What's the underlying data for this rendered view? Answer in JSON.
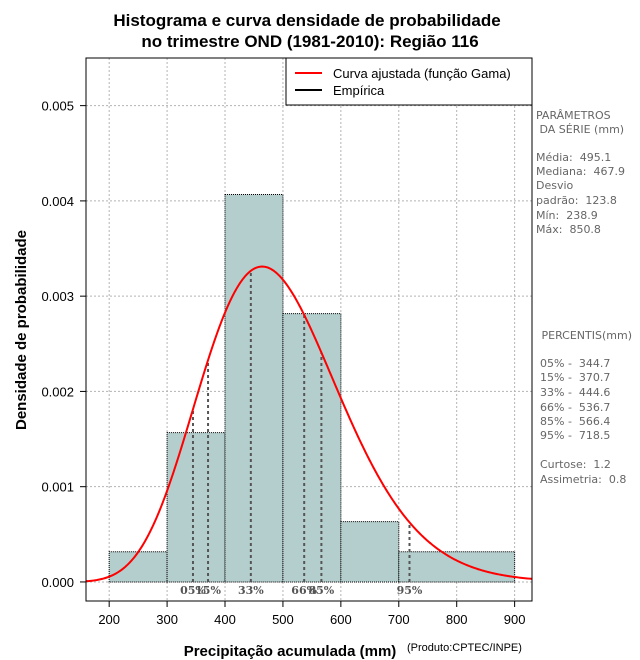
{
  "chart_data": {
    "type": "histogram",
    "title_line1": "Histograma e curva densidade de probabilidade",
    "title_line2": "no trimestre OND (1981-2010): Região 116",
    "xlabel": "Precipitação acumulada (mm)",
    "ylabel": "Densidade de probabilidade",
    "credit": "(Produto:CPTEC/INPE)",
    "xlim": [
      160,
      930
    ],
    "ylim": [
      -0.0002,
      0.0055
    ],
    "x_ticks": [
      200,
      300,
      400,
      500,
      600,
      700,
      800,
      900
    ],
    "y_ticks": [
      0.0,
      0.001,
      0.002,
      0.003,
      0.004,
      0.005
    ],
    "y_tick_labels": [
      "0.000",
      "0.001",
      "0.002",
      "0.003",
      "0.004",
      "0.005"
    ],
    "grid": true,
    "bars": [
      {
        "x0": 200,
        "x1": 300,
        "density": 0.000317
      },
      {
        "x0": 300,
        "x1": 400,
        "density": 0.001567
      },
      {
        "x0": 400,
        "x1": 500,
        "density": 0.004067
      },
      {
        "x0": 500,
        "x1": 600,
        "density": 0.002817
      },
      {
        "x0": 600,
        "x1": 700,
        "density": 0.000633
      },
      {
        "x0": 700,
        "x1": 900,
        "density": 0.000317
      }
    ],
    "gamma_fit": {
      "shape": 16.0,
      "scale": 30.94
    },
    "percentiles": [
      {
        "label": "05%",
        "value": 344.7
      },
      {
        "label": "15%",
        "value": 370.7
      },
      {
        "label": "33%",
        "value": 444.6
      },
      {
        "label": "66%",
        "value": 536.7
      },
      {
        "label": "85%",
        "value": 566.4
      },
      {
        "label": "95%",
        "value": 718.5
      }
    ],
    "legend": [
      {
        "label": "Curva ajustada (função Gama)",
        "color": "#ff0000"
      },
      {
        "label": "Empírica",
        "color": "#000000"
      }
    ],
    "bar_color": "#b4cdcd",
    "curve_color": "#ff0000"
  },
  "side_panel": {
    "params_title_1": "PARÂMETROS",
    "params_title_2": " DA SÉRIE (mm)",
    "media": "Média:  495.1",
    "mediana": "Mediana:  467.9",
    "desvio_1": "Desvio",
    "desvio_2": "padrão:  123.8",
    "min": "Mín:  238.9",
    "max": "Máx:  850.8",
    "percentis_title": " PERCENTIS(mm)",
    "p05": "05% -  344.7",
    "p15": "15% -  370.7",
    "p33": "33% -  444.6",
    "p66": "66% -  536.7",
    "p85": "85% -  566.4",
    "p95": "95% -  718.5",
    "curtose": "Curtose:  1.2",
    "assimetria": "Assimetria:  0.8"
  }
}
